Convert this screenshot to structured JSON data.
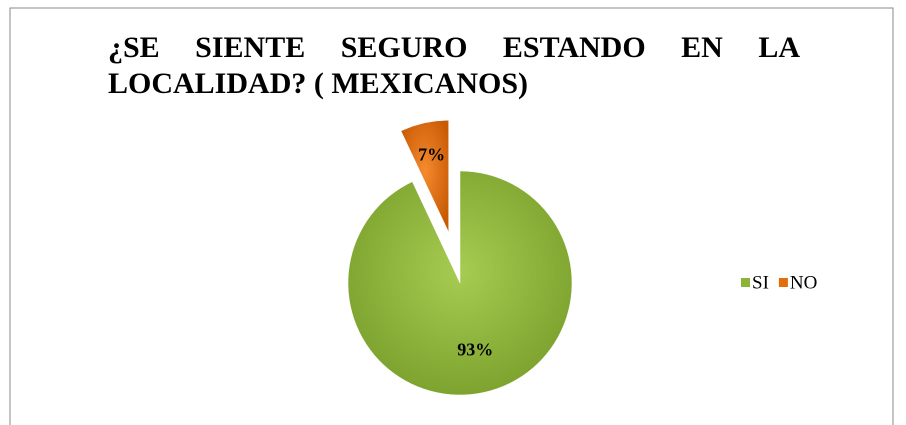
{
  "chart_data": {
    "type": "pie",
    "title": "¿SE SIENTE SEGURO ESTANDO EN LA LOCALIDAD? ( MEXICANOS)",
    "categories": [
      "SI",
      "NO"
    ],
    "values": [
      93,
      7
    ],
    "value_labels": [
      "93%",
      "7%"
    ],
    "colors": [
      "#8cb43a",
      "#e46c0a"
    ],
    "legend": "right"
  }
}
